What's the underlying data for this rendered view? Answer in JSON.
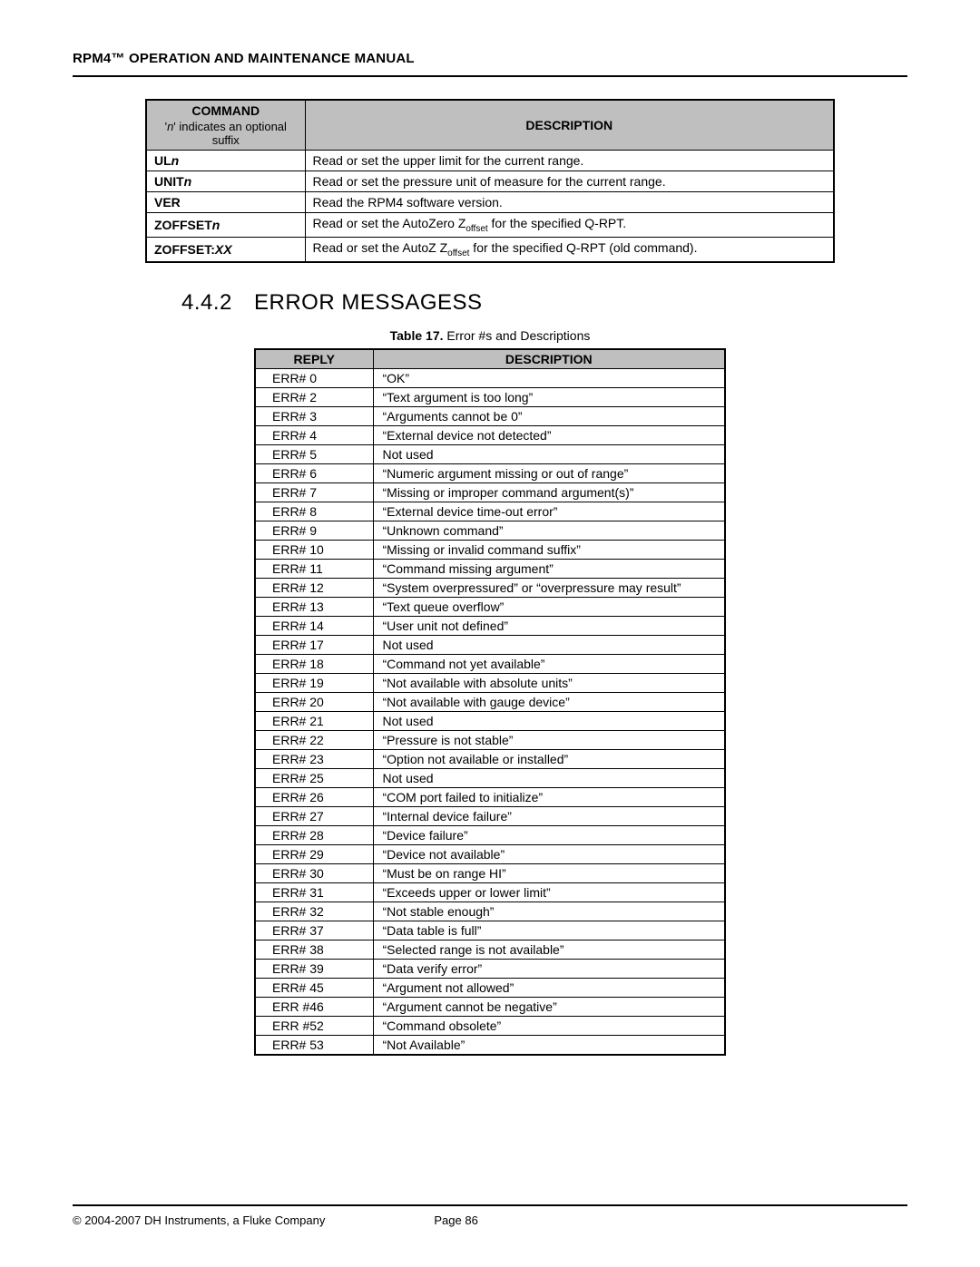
{
  "header": {
    "title": "RPM4™ OPERATION AND MAINTENANCE MANUAL"
  },
  "cmd_table": {
    "header_col1_title": "COMMAND",
    "header_col1_sub_prefix": "'",
    "header_col1_sub_n": "n",
    "header_col1_sub_rest": "'  indicates an optional suffix",
    "header_col2": "DESCRIPTION",
    "rows": [
      {
        "cmd_prefix": "UL",
        "cmd_suffix_italic": "n",
        "desc": "Read or set the upper limit for the current range."
      },
      {
        "cmd_prefix": "UNIT",
        "cmd_suffix_italic": "n",
        "desc": "Read or set the pressure unit of measure for the current range."
      },
      {
        "cmd_prefix": "VER",
        "cmd_suffix_italic": "",
        "desc": "Read the RPM4 software version."
      },
      {
        "cmd_prefix": "ZOFFSET",
        "cmd_suffix_italic": "n",
        "desc_pre": "Read or set the AutoZero  Z",
        "desc_sub": "offset",
        "desc_post": " for the specified Q-RPT."
      },
      {
        "cmd_prefix": "ZOFFSET:",
        "cmd_suffix_italic": "XX",
        "desc_pre": "Read or set the AutoZ Z",
        "desc_sub": "offset",
        "desc_post": " for the specified Q-RPT (old command)."
      }
    ]
  },
  "section": {
    "number": "4.4.2",
    "title": "ERROR MESSAGESS"
  },
  "err_caption": {
    "label": "Table 17.",
    "text": "  Error #s and Descriptions"
  },
  "err_table": {
    "header_col1": "REPLY",
    "header_col2": "DESCRIPTION",
    "rows": [
      {
        "reply": "ERR# 0",
        "desc": "“OK”"
      },
      {
        "reply": "ERR# 2",
        "desc": "“Text argument is too long”"
      },
      {
        "reply": "ERR# 3",
        "desc": "“Arguments cannot  be 0”"
      },
      {
        "reply": "ERR# 4",
        "desc": "“External device not detected”"
      },
      {
        "reply": "ERR# 5",
        "desc": "Not used"
      },
      {
        "reply": "ERR# 6",
        "desc": "“Numeric argument missing or out of range”"
      },
      {
        "reply": "ERR# 7",
        "desc": "“Missing or improper command argument(s)”"
      },
      {
        "reply": "ERR# 8",
        "desc": "“External device time-out error”"
      },
      {
        "reply": "ERR# 9",
        "desc": "“Unknown command”"
      },
      {
        "reply": "ERR# 10",
        "desc": "“Missing or invalid command suffix”"
      },
      {
        "reply": "ERR# 11",
        "desc": "“Command missing argument”"
      },
      {
        "reply": "ERR# 12",
        "desc": "“System overpressured” or “overpressure may result”"
      },
      {
        "reply": "ERR# 13",
        "desc": "“Text queue overflow”"
      },
      {
        "reply": "ERR# 14",
        "desc": "“User unit not defined”"
      },
      {
        "reply": "ERR# 17",
        "desc": "Not used"
      },
      {
        "reply": "ERR# 18",
        "desc": "“Command not yet available”"
      },
      {
        "reply": "ERR# 19",
        "desc": "“Not available with absolute units”"
      },
      {
        "reply": "ERR# 20",
        "desc": "“Not available with gauge device”"
      },
      {
        "reply": "ERR# 21",
        "desc": "Not used"
      },
      {
        "reply": "ERR# 22",
        "desc": "“Pressure is not stable”"
      },
      {
        "reply": "ERR# 23",
        "desc": "“Option not available or installed”"
      },
      {
        "reply": "ERR# 25",
        "desc": "Not used"
      },
      {
        "reply": "ERR# 26",
        "desc": "“COM port failed to initialize”"
      },
      {
        "reply": "ERR# 27",
        "desc": "“Internal device failure”"
      },
      {
        "reply": "ERR# 28",
        "desc": "“Device failure”"
      },
      {
        "reply": "ERR# 29",
        "desc": "“Device not available”"
      },
      {
        "reply": "ERR# 30",
        "desc": "“Must be on range  HI”"
      },
      {
        "reply": "ERR# 31",
        "desc": "“Exceeds upper or lower limit”"
      },
      {
        "reply": "ERR# 32",
        "desc": "“Not stable enough”"
      },
      {
        "reply": "ERR# 37",
        "desc": "“Data table is full”"
      },
      {
        "reply": "ERR# 38",
        "desc": "“Selected range is not available”"
      },
      {
        "reply": "ERR# 39",
        "desc": "“Data verify error”"
      },
      {
        "reply": "ERR# 45",
        "desc": "“Argument not allowed”"
      },
      {
        "reply": "ERR #46",
        "desc": "“Argument cannot be negative”"
      },
      {
        "reply": "ERR #52",
        "desc": "“Command obsolete”"
      },
      {
        "reply": "ERR# 53",
        "desc": "“Not Available”"
      }
    ]
  },
  "footer": {
    "copyright": "© 2004-2007 DH Instruments, a Fluke Company",
    "page": "Page 86"
  },
  "colors": {
    "header_bg": "#bfbfbf",
    "text": "#000000",
    "page_bg": "#ffffff"
  }
}
